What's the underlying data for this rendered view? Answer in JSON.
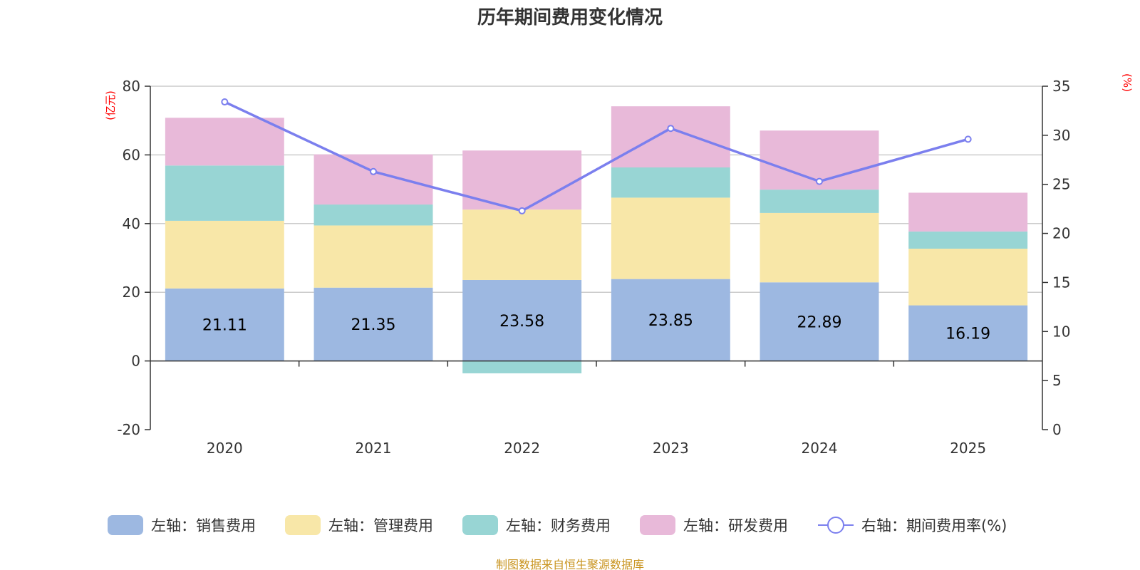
{
  "title": "历年期间费用变化情况",
  "source": "制图数据来自恒生聚源数据库",
  "colors": {
    "sales": "#9db8e1",
    "admin": "#f8e7a8",
    "finance": "#98d5d4",
    "rd": "#e8b9d9",
    "rate": "#7b7fee",
    "unit": "#ff0000",
    "source": "#c9941f",
    "grid": "#cccccc",
    "axis": "#333333"
  },
  "chart_data": {
    "type": "bar",
    "stacked": true,
    "title": "历年期间费用变化情况",
    "categories": [
      "2020",
      "2021",
      "2022",
      "2023",
      "2024",
      "2025"
    ],
    "left_axis": {
      "unit": "(亿元)",
      "ylim": [
        -20,
        80
      ],
      "ticks": [
        80,
        60,
        40,
        20,
        0,
        -20
      ]
    },
    "right_axis": {
      "unit": "(%)",
      "ylim": [
        0,
        35
      ],
      "ticks": [
        35,
        30,
        25,
        20,
        15,
        10,
        5,
        0
      ]
    },
    "series": [
      {
        "key": "sales",
        "name": "左轴：销售费用",
        "axis": "left",
        "kind": "bar",
        "values": [
          21.11,
          21.35,
          23.58,
          23.85,
          22.89,
          16.19
        ],
        "labels": [
          "21.11",
          "21.35",
          "23.58",
          "23.85",
          "22.89",
          "16.19"
        ]
      },
      {
        "key": "admin",
        "name": "左轴：管理费用",
        "axis": "left",
        "kind": "bar",
        "values": [
          19.7,
          18.1,
          20.5,
          23.7,
          20.2,
          16.5
        ]
      },
      {
        "key": "finance",
        "name": "左轴：财务费用",
        "axis": "left",
        "kind": "bar",
        "values": [
          16.1,
          6.1,
          -3.6,
          8.8,
          6.8,
          5.0
        ]
      },
      {
        "key": "rd",
        "name": "左轴：研发费用",
        "axis": "left",
        "kind": "bar",
        "values": [
          13.9,
          14.6,
          17.2,
          17.8,
          17.2,
          11.3
        ]
      },
      {
        "key": "rate",
        "name": "右轴：期间费用率(%)",
        "axis": "right",
        "kind": "line",
        "values": [
          33.4,
          26.3,
          22.3,
          30.7,
          25.3,
          29.6
        ]
      }
    ]
  }
}
